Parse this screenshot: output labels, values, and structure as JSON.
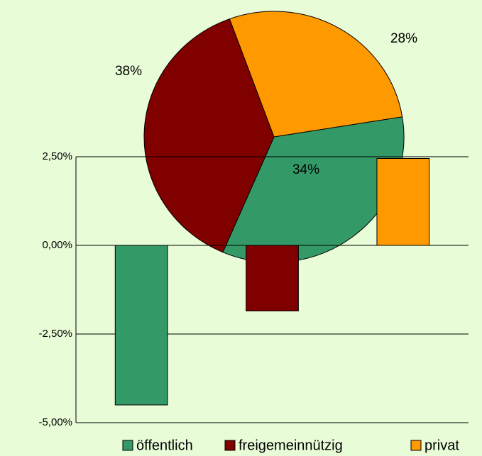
{
  "chart_data": [
    {
      "type": "bar",
      "categories": [
        "öffentlich",
        "freigemeinnützig",
        "privat"
      ],
      "values": [
        -4.5,
        -1.85,
        2.45
      ],
      "colors": [
        "#339966",
        "#800000",
        "#ff9900"
      ],
      "ylim": [
        -5,
        2.5
      ],
      "yticks": [
        {
          "value": -5,
          "label": "-5,00%"
        },
        {
          "value": -2.5,
          "label": "-2,50%"
        },
        {
          "value": 0,
          "label": "0,00%"
        },
        {
          "value": 2.5,
          "label": "2,50%"
        }
      ],
      "grid": true,
      "legend": "bottom"
    },
    {
      "type": "pie",
      "categories": [
        "öffentlich",
        "freigemeinnützig",
        "privat"
      ],
      "values": [
        34,
        38,
        28
      ],
      "value_labels": [
        "34%",
        "38%",
        "28%"
      ],
      "colors": [
        "#339966",
        "#800000",
        "#ff9900"
      ]
    }
  ]
}
